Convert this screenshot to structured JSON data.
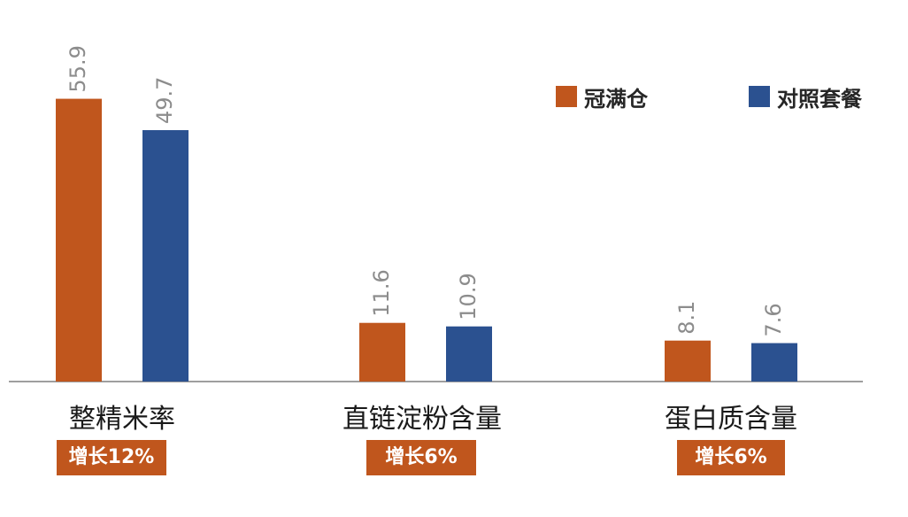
{
  "colors": {
    "series1": "#C0561D",
    "series2": "#2B5190",
    "badge": "#C0561D",
    "axis": "#7f7f7f",
    "value_label": "#8c8c8c"
  },
  "legend": {
    "items": [
      {
        "label": "冠满仓"
      },
      {
        "label": "对照套餐"
      }
    ]
  },
  "badges": [
    "增长12%",
    "增长6%",
    "增长6%"
  ],
  "chart_data": {
    "type": "bar",
    "categories": [
      "整精米率",
      "直链淀粉含量",
      "蛋白质含量"
    ],
    "series": [
      {
        "name": "冠满仓",
        "values": [
          55.9,
          11.6,
          8.1
        ]
      },
      {
        "name": "对照套餐",
        "values": [
          49.7,
          10.9,
          7.6
        ]
      }
    ],
    "ylim": [
      0,
      56
    ],
    "title": "",
    "xlabel": "",
    "ylabel": "",
    "grid": false,
    "legend_position": "top-right"
  }
}
